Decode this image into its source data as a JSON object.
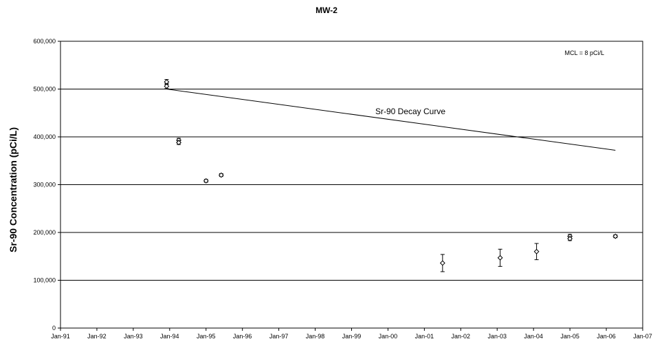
{
  "chart_data": {
    "type": "scatter",
    "title": "MW-2",
    "ylabel": "Sr-90 Concentration (pCi/L)",
    "xlabel": "",
    "ylim": [
      0,
      600000
    ],
    "yticks": [
      0,
      100000,
      200000,
      300000,
      400000,
      500000,
      600000
    ],
    "ytick_labels": [
      "0",
      "100,000",
      "200,000",
      "300,000",
      "400,000",
      "500,000",
      "600,000"
    ],
    "xlim": [
      "1991-01",
      "2007-01"
    ],
    "xtick_labels": [
      "Jan-91",
      "Jan-92",
      "Jan-93",
      "Jan-94",
      "Jan-95",
      "Jan-96",
      "Jan-97",
      "Jan-98",
      "Jan-99",
      "Jan-00",
      "Jan-01",
      "Jan-02",
      "Jan-03",
      "Jan-04",
      "Jan-05",
      "Jan-06",
      "Jan-07"
    ],
    "grid": "horizontal",
    "annotation": "MCL = 8 pCi/L",
    "series": [
      {
        "marker": "diamond",
        "points": [
          {
            "x": "1993-12",
            "y": 515000,
            "err": 5000
          },
          {
            "x": "1993-12",
            "y": 506000,
            "err": 5000
          },
          {
            "x": "1994-04",
            "y": 393000,
            "err": 4000
          },
          {
            "x": "1994-04",
            "y": 388000,
            "err": 4000
          },
          {
            "x": "1995-01",
            "y": 308000,
            "err": 3000
          },
          {
            "x": "1995-06",
            "y": 320000,
            "err": 3000
          },
          {
            "x": "2001-07",
            "y": 136000,
            "err": 18000
          },
          {
            "x": "2003-02",
            "y": 147000,
            "err": 18000
          },
          {
            "x": "2004-02",
            "y": 160000,
            "err": 17000
          },
          {
            "x": "2005-01",
            "y": 192000,
            "err": 4000
          },
          {
            "x": "2005-01",
            "y": 187000,
            "err": 4000
          },
          {
            "x": "2006-04",
            "y": 192000,
            "err": 3000
          }
        ]
      }
    ],
    "decay_curve": {
      "label": "Sr-90 Decay Curve",
      "points": [
        {
          "x": "1993-12",
          "y": 500000
        },
        {
          "x": "2006-04",
          "y": 372000
        }
      ]
    }
  }
}
